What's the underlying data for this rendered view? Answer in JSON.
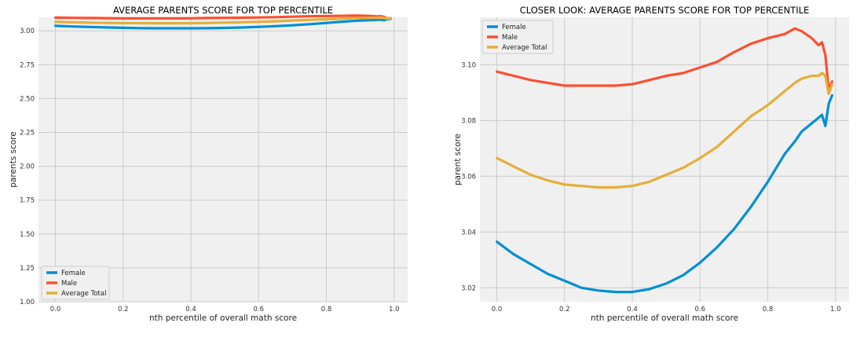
{
  "chart_data": [
    {
      "type": "line",
      "title": "AVERAGE PARENTS SCORE FOR TOP PERCENTILE",
      "xlabel": "nth percentile of overall math score",
      "ylabel": "parents score",
      "xlim": [
        -0.05,
        1.04
      ],
      "ylim": [
        1.0,
        3.1
      ],
      "xticks": [
        0.0,
        0.2,
        0.4,
        0.6,
        0.8,
        1.0
      ],
      "xtick_labels": [
        "0.0",
        "0.2",
        "0.4",
        "0.6",
        "0.8",
        "1.0"
      ],
      "yticks": [
        1.0,
        1.25,
        1.5,
        1.75,
        2.0,
        2.25,
        2.5,
        2.75,
        3.0
      ],
      "ytick_labels": [
        "1.00",
        "1.25",
        "1.50",
        "1.75",
        "2.00",
        "2.25",
        "2.50",
        "2.75",
        "3.00"
      ],
      "grid": true,
      "legend_position": "bottom-left",
      "x": [
        0.0,
        0.05,
        0.1,
        0.15,
        0.2,
        0.25,
        0.3,
        0.35,
        0.4,
        0.45,
        0.5,
        0.55,
        0.6,
        0.65,
        0.7,
        0.75,
        0.8,
        0.85,
        0.88,
        0.9,
        0.93,
        0.95,
        0.96,
        0.97,
        0.98,
        0.99
      ],
      "series": [
        {
          "name": "Female",
          "color": "#008fd5",
          "values": [
            3.0365,
            3.032,
            3.0285,
            3.025,
            3.0225,
            3.02,
            3.019,
            3.0185,
            3.0185,
            3.0195,
            3.0215,
            3.0245,
            3.029,
            3.0345,
            3.041,
            3.049,
            3.058,
            3.068,
            3.0725,
            3.076,
            3.079,
            3.081,
            3.082,
            3.078,
            3.086,
            3.089
          ]
        },
        {
          "name": "Male",
          "color": "#fc4f30",
          "values": [
            3.0975,
            3.096,
            3.0945,
            3.0935,
            3.0925,
            3.0925,
            3.0925,
            3.0925,
            3.093,
            3.0945,
            3.096,
            3.097,
            3.099,
            3.101,
            3.1045,
            3.1075,
            3.1095,
            3.111,
            3.113,
            3.112,
            3.1095,
            3.107,
            3.108,
            3.1035,
            3.091,
            3.094
          ]
        },
        {
          "name": "Average Total",
          "color": "#e5ae38",
          "values": [
            3.0665,
            3.0635,
            3.0605,
            3.0585,
            3.057,
            3.0565,
            3.056,
            3.056,
            3.0565,
            3.058,
            3.0605,
            3.063,
            3.0665,
            3.0705,
            3.076,
            3.0815,
            3.0855,
            3.0905,
            3.0935,
            3.095,
            3.096,
            3.096,
            3.097,
            3.096,
            3.0895,
            3.093
          ]
        }
      ]
    },
    {
      "type": "line",
      "title": "CLOSER LOOK: AVERAGE PARENTS SCORE FOR TOP PERCENTILE",
      "xlabel": "nth percentile of overall math score",
      "ylabel": "parent score",
      "xlim": [
        -0.05,
        1.04
      ],
      "ylim": [
        3.015,
        3.117
      ],
      "xticks": [
        0.0,
        0.2,
        0.4,
        0.6,
        0.8,
        1.0
      ],
      "xtick_labels": [
        "0.0",
        "0.2",
        "0.4",
        "0.6",
        "0.8",
        "1.0"
      ],
      "yticks": [
        3.02,
        3.04,
        3.06,
        3.08,
        3.1
      ],
      "ytick_labels": [
        "3.02",
        "3.04",
        "3.06",
        "3.08",
        "3.10"
      ],
      "grid": true,
      "legend_position": "top-left",
      "x": [
        0.0,
        0.05,
        0.1,
        0.15,
        0.2,
        0.25,
        0.3,
        0.35,
        0.4,
        0.45,
        0.5,
        0.55,
        0.6,
        0.65,
        0.7,
        0.75,
        0.8,
        0.85,
        0.88,
        0.9,
        0.93,
        0.95,
        0.96,
        0.97,
        0.98,
        0.99
      ],
      "series": [
        {
          "name": "Female",
          "color": "#008fd5",
          "values": [
            3.0365,
            3.032,
            3.0285,
            3.025,
            3.0225,
            3.02,
            3.019,
            3.0185,
            3.0185,
            3.0195,
            3.0215,
            3.0245,
            3.029,
            3.0345,
            3.041,
            3.049,
            3.058,
            3.068,
            3.0725,
            3.076,
            3.079,
            3.081,
            3.082,
            3.078,
            3.086,
            3.089
          ]
        },
        {
          "name": "Male",
          "color": "#fc4f30",
          "values": [
            3.0975,
            3.096,
            3.0945,
            3.0935,
            3.0925,
            3.0925,
            3.0925,
            3.0925,
            3.093,
            3.0945,
            3.096,
            3.097,
            3.099,
            3.101,
            3.1045,
            3.1075,
            3.1095,
            3.111,
            3.113,
            3.112,
            3.1095,
            3.107,
            3.108,
            3.1035,
            3.091,
            3.094
          ]
        },
        {
          "name": "Average Total",
          "color": "#e5ae38",
          "values": [
            3.0665,
            3.0635,
            3.0605,
            3.0585,
            3.057,
            3.0565,
            3.056,
            3.056,
            3.0565,
            3.058,
            3.0605,
            3.063,
            3.0665,
            3.0705,
            3.076,
            3.0815,
            3.0855,
            3.0905,
            3.0935,
            3.095,
            3.096,
            3.096,
            3.097,
            3.096,
            3.0895,
            3.093
          ]
        }
      ]
    }
  ]
}
